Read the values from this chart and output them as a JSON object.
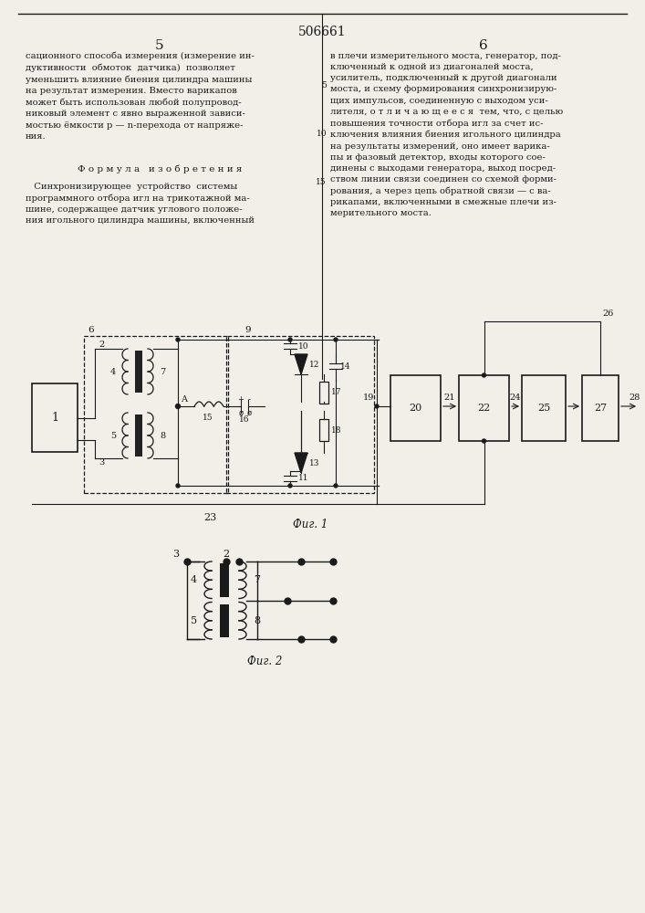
{
  "title": "506661",
  "page_left": "5",
  "page_right": "6",
  "fig1_label": "Фиг. 1",
  "fig2_label": "Фиг. 2",
  "bg_color": "#f2efe9",
  "line_color": "#1a1a1a",
  "text_color": "#1a1a1a"
}
